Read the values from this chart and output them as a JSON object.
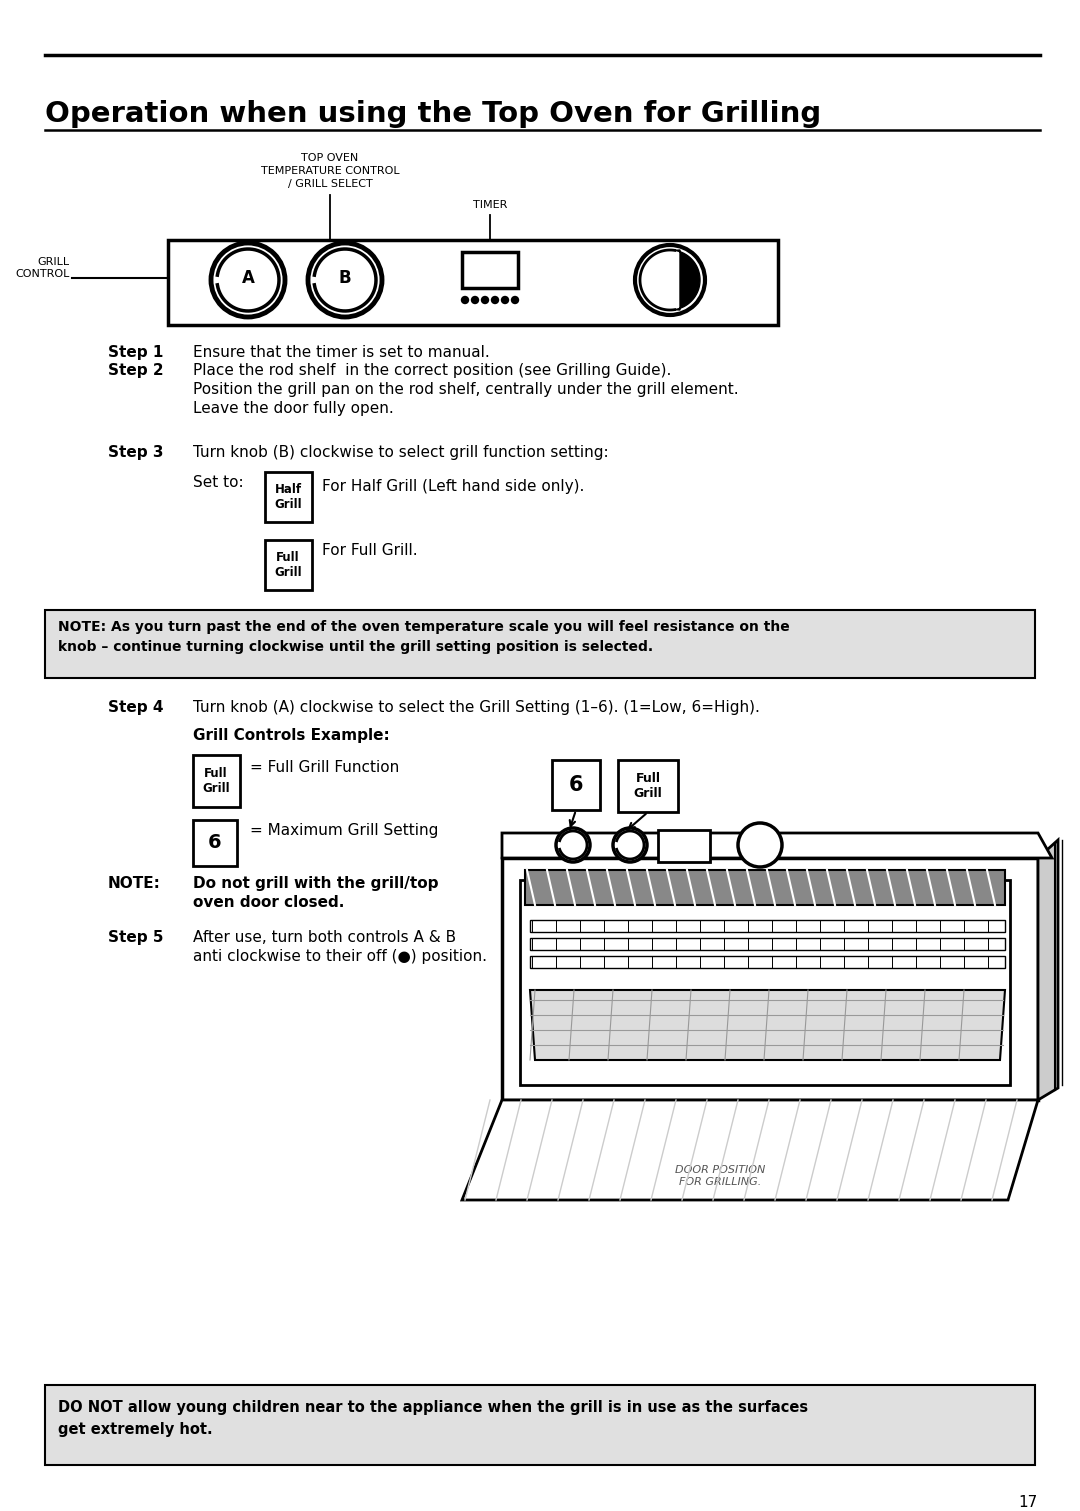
{
  "title": "Operation when using the Top Oven for Grilling",
  "bg_color": "#ffffff",
  "page_number": "17",
  "top_label": "TOP OVEN\nTEMPERATURE CONTROL\n/ GRILL SELECT",
  "timer_label": "TIMER",
  "grill_control_label": "GRILL\nCONTROL",
  "step1_bold": "Step 1",
  "step1_text": "Ensure that the timer is set to manual.",
  "step2_bold": "Step 2",
  "step2_line1": "Place the rod shelf  in the correct position (see Grilling Guide).",
  "step2_line2": "Position the grill pan on the rod shelf, centrally under the grill element.",
  "step2_line3": "Leave the door fully open.",
  "step3_bold": "Step 3",
  "step3_text": "Turn knob (B) clockwise to select grill function setting:",
  "step3_setto": "Set to:",
  "step3_half": "Half\nGrill",
  "step3_half_desc": "For Half Grill (Left hand side only).",
  "step3_full": "Full\nGrill",
  "step3_full_desc": "For Full Grill.",
  "note1": "NOTE: As you turn past the end of the oven temperature scale you will feel resistance on the\nknob – continue turning clockwise until the grill setting position is selected.",
  "step4_bold": "Step 4",
  "step4_text": "Turn knob (A) clockwise to select the Grill Setting (1–6). (1=Low, 6=High).",
  "grill_example_title": "Grill Controls Example:",
  "example_full_label": "Full\nGrill",
  "example_full_desc": "= Full Grill Function",
  "example_6_desc": "= Maximum Grill Setting",
  "note2_label": "NOTE:",
  "note2_text1": "Do not grill with the grill/top",
  "note2_text2": "oven door closed.",
  "step5_bold": "Step 5",
  "step5_text1": "After use, turn both controls A & B",
  "step5_text2": "anti clockwise to their off (●) position.",
  "note3_line1": "DO NOT allow young children near to the appliance when the grill is in use as the surfaces",
  "note3_line2": "get extremely hot."
}
